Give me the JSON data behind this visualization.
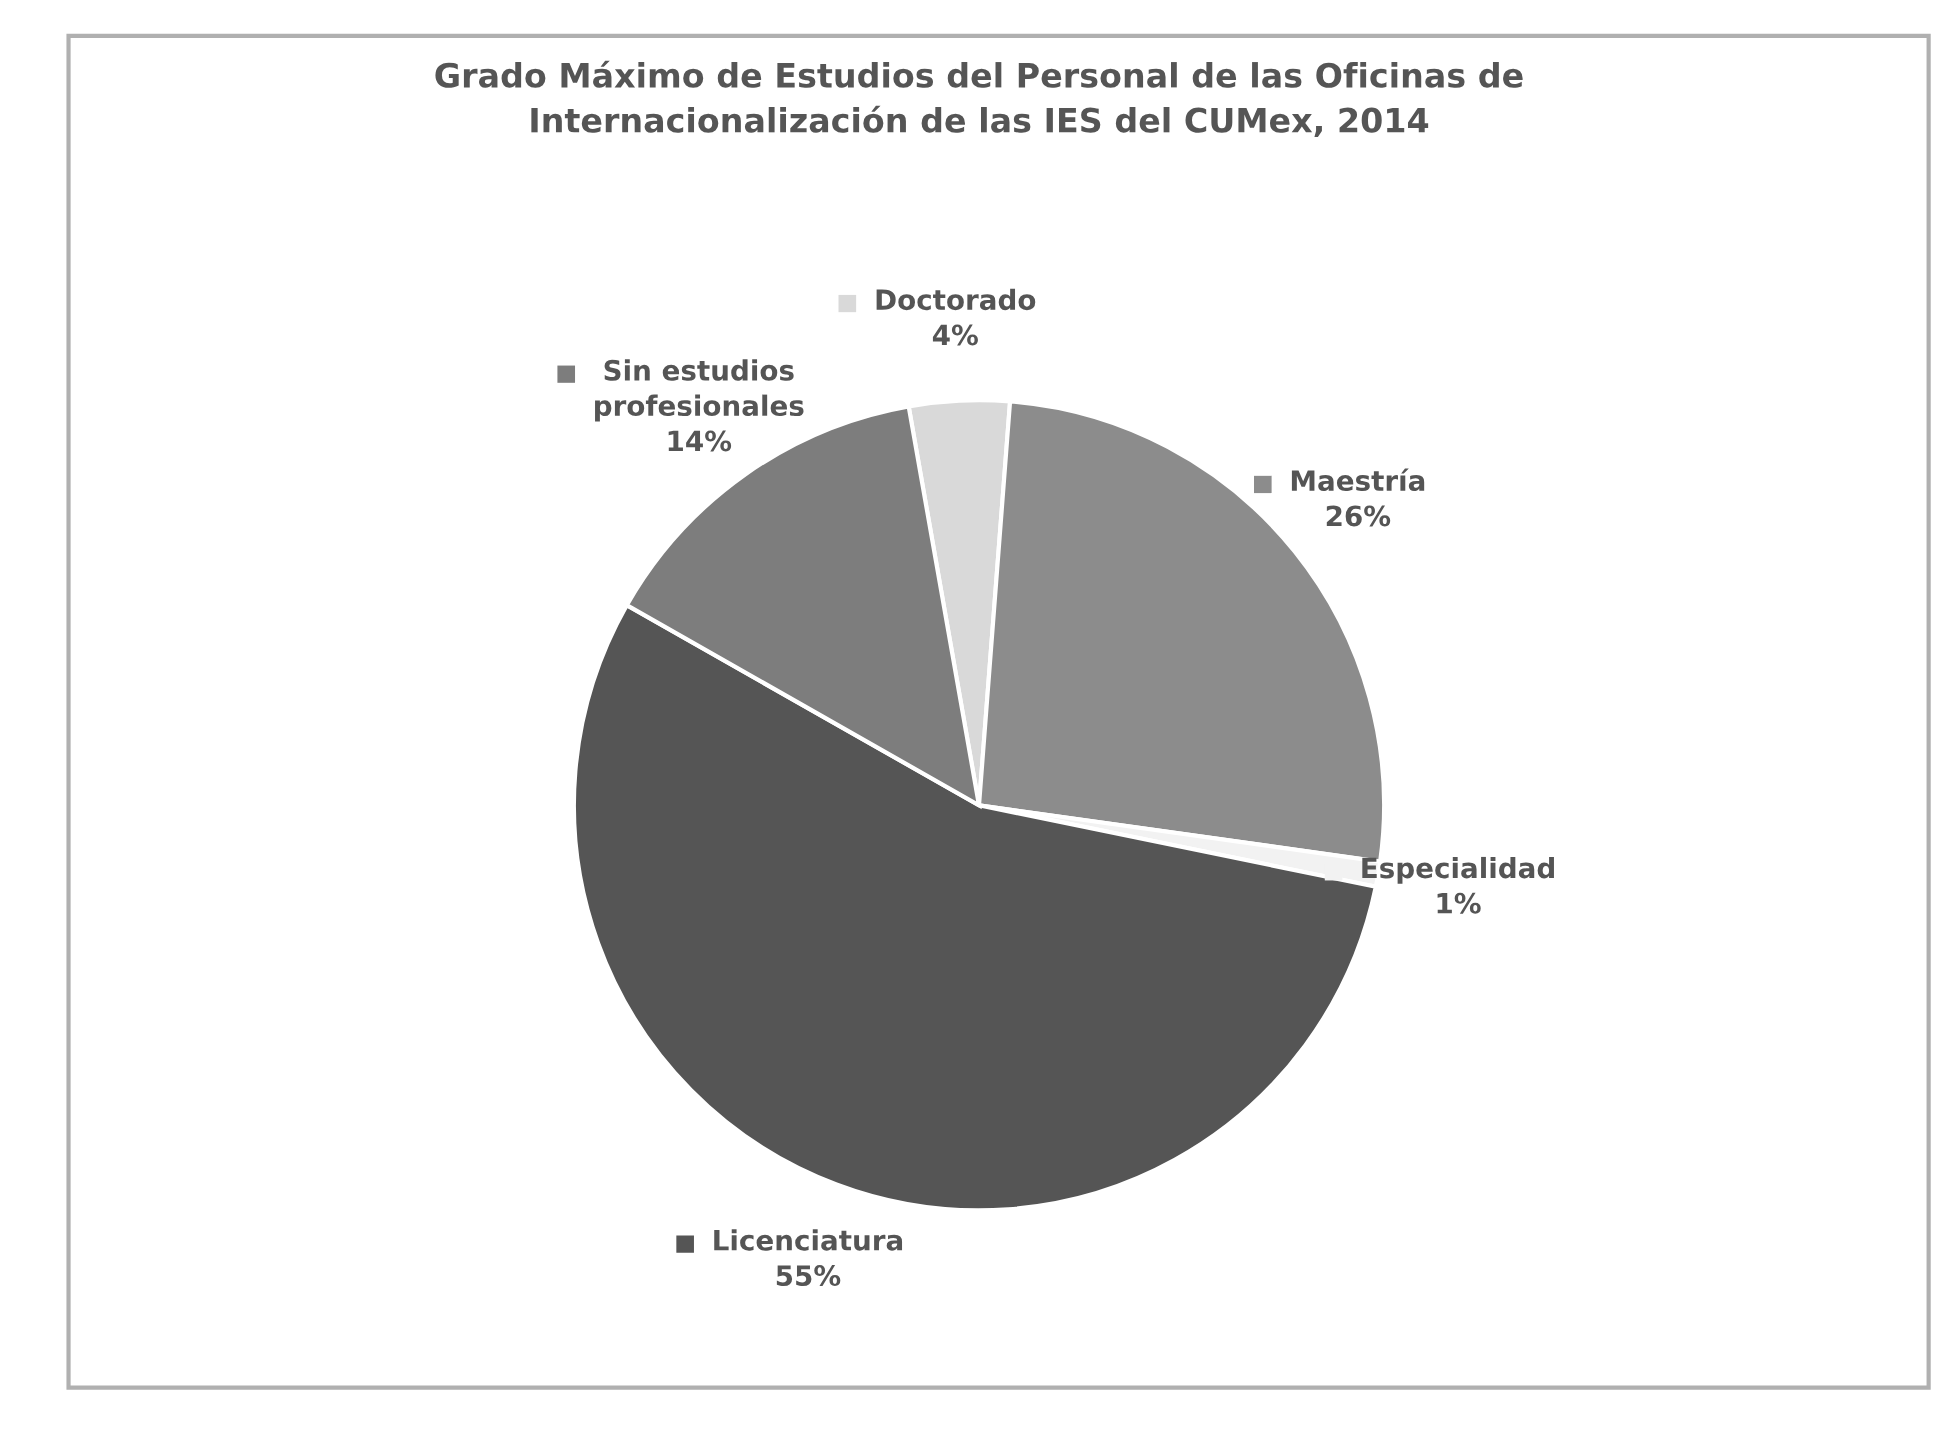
{
  "chart_data": {
    "type": "pie",
    "title": "Grado Máximo de Estudios del Personal de las Oficinas de\nInternacionalización de las IES del CUMex, 2014",
    "categories": [
      "Doctorado",
      "Maestría",
      "Especialidad",
      "Licenciatura",
      "Sin estudios\nprofesionales"
    ],
    "values": [
      4,
      26,
      1,
      55,
      14
    ],
    "colors": [
      "#d9d9d9",
      "#8c8c8c",
      "#f2f2f2",
      "#555555",
      "#7d7d7d"
    ],
    "value_labels": [
      "4%",
      "26%",
      "1%",
      "55%",
      "14%"
    ],
    "legend": "top"
  }
}
